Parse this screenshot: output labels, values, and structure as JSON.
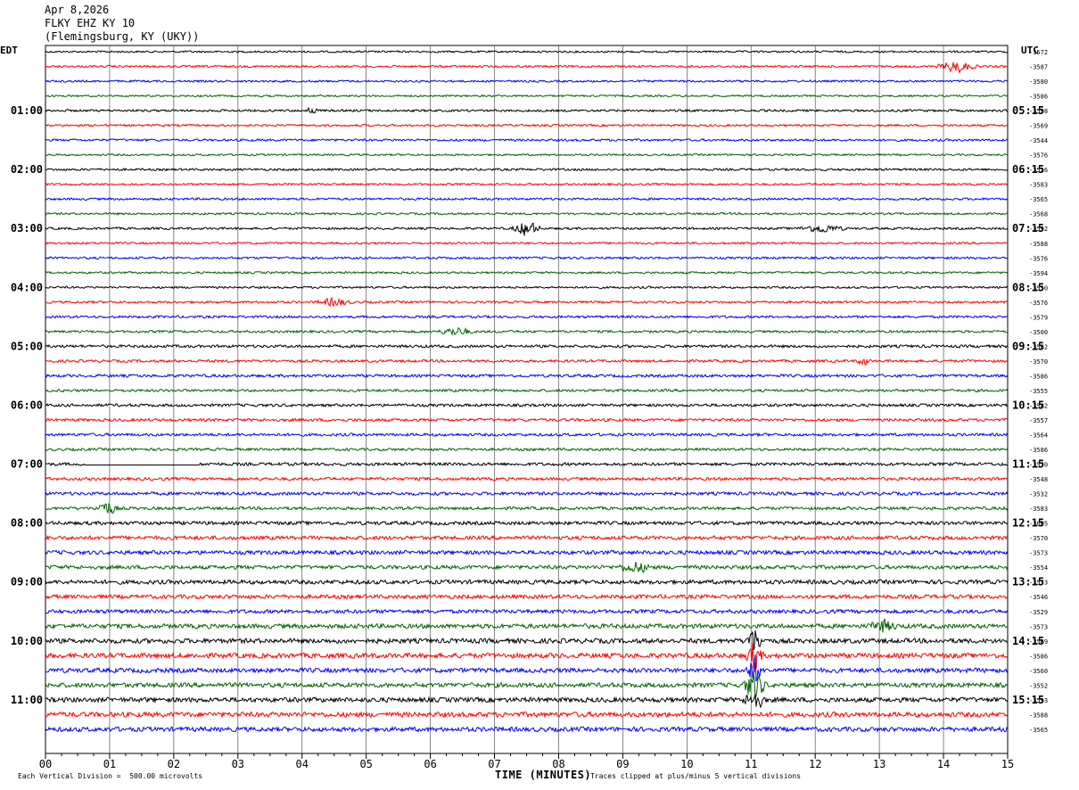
{
  "header": {
    "date": "Apr 8,2026",
    "station": "FLKY EHZ KY 10",
    "location": "(Flemingsburg, KY (UKY))"
  },
  "timezones": {
    "left": "EDT",
    "right": "UTC"
  },
  "footer": {
    "division_note": "Each Vertical Division =  500.00 microvolts",
    "clip_note": "Traces clipped at plus/minus 5 vertical divisions"
  },
  "chart_data": {
    "type": "line",
    "title": "",
    "xlabel": "TIME (MINUTES)",
    "ylabel": "",
    "xlim": [
      0,
      15
    ],
    "x_ticks": [
      "00",
      "01",
      "02",
      "03",
      "04",
      "05",
      "06",
      "07",
      "08",
      "09",
      "10",
      "11",
      "12",
      "13",
      "14",
      "15"
    ],
    "grid": true,
    "trace_minutes": 15,
    "trace_colors": [
      "#000000",
      "#ff0000",
      "#0000ff",
      "#006400"
    ],
    "left_hour_labels": [
      "01:00",
      "02:00",
      "03:00",
      "04:00",
      "05:00",
      "06:00",
      "07:00",
      "08:00",
      "09:00",
      "10:00",
      "11:00"
    ],
    "right_hour_labels": [
      "05:15",
      "06:15",
      "07:15",
      "08:15",
      "09:15",
      "10:15",
      "11:15",
      "12:15",
      "13:15",
      "14:15",
      "15:15"
    ],
    "trace_offsets": [
      "-3572",
      "-3587",
      "-3580",
      "-3586",
      "-3598",
      "-3569",
      "-3544",
      "-3576",
      "-3526",
      "-3583",
      "-3565",
      "-3568",
      "-3592",
      "-3588",
      "-3576",
      "-3594",
      "-3550",
      "-3576",
      "-3579",
      "-3500",
      "-3562",
      "-3570",
      "-3586",
      "-3555",
      "-3582",
      "-3557",
      "-3564",
      "-3586",
      "-3570",
      "-3548",
      "-3532",
      "-3583",
      "-3605",
      "-3570",
      "-3573",
      "-3554",
      "-3573",
      "-3546",
      "-3529",
      "-3573",
      "-3569",
      "-3586",
      "-3560",
      "-3552",
      "-3593",
      "-3588",
      "-3565"
    ],
    "noise_rows": [
      {
        "row": 0,
        "level": 1.0
      },
      {
        "row": 1,
        "level": 1.1
      },
      {
        "row": 2,
        "level": 1.1
      },
      {
        "row": 3,
        "level": 1.0
      },
      {
        "row": 4,
        "level": 1.2
      },
      {
        "row": 5,
        "level": 1.1
      },
      {
        "row": 6,
        "level": 1.2
      },
      {
        "row": 7,
        "level": 1.0
      },
      {
        "row": 8,
        "level": 1.2
      },
      {
        "row": 9,
        "level": 1.1
      },
      {
        "row": 10,
        "level": 1.2
      },
      {
        "row": 11,
        "level": 1.1
      },
      {
        "row": 12,
        "level": 1.2
      },
      {
        "row": 13,
        "level": 1.1
      },
      {
        "row": 14,
        "level": 1.2
      },
      {
        "row": 15,
        "level": 1.1
      },
      {
        "row": 16,
        "level": 1.1
      },
      {
        "row": 17,
        "level": 1.2
      },
      {
        "row": 18,
        "level": 1.3
      },
      {
        "row": 19,
        "level": 1.3
      },
      {
        "row": 20,
        "level": 1.5
      },
      {
        "row": 21,
        "level": 1.4
      },
      {
        "row": 22,
        "level": 1.5
      },
      {
        "row": 23,
        "level": 1.4
      },
      {
        "row": 24,
        "level": 1.5
      },
      {
        "row": 25,
        "level": 1.5
      },
      {
        "row": 26,
        "level": 1.5
      },
      {
        "row": 27,
        "level": 1.4
      },
      {
        "row": 28,
        "level": 1.6
      },
      {
        "row": 29,
        "level": 1.6
      },
      {
        "row": 30,
        "level": 1.7
      },
      {
        "row": 31,
        "level": 1.6
      },
      {
        "row": 32,
        "level": 1.9
      },
      {
        "row": 33,
        "level": 2.0
      },
      {
        "row": 34,
        "level": 2.1
      },
      {
        "row": 35,
        "level": 2.0
      },
      {
        "row": 36,
        "level": 2.2
      },
      {
        "row": 37,
        "level": 2.1
      },
      {
        "row": 38,
        "level": 2.0
      },
      {
        "row": 39,
        "level": 2.4
      },
      {
        "row": 40,
        "level": 2.5
      },
      {
        "row": 41,
        "level": 2.6
      },
      {
        "row": 42,
        "level": 2.4
      },
      {
        "row": 43,
        "level": 2.4
      },
      {
        "row": 44,
        "level": 2.5
      },
      {
        "row": 45,
        "level": 2.6
      },
      {
        "row": 46,
        "level": 2.4
      }
    ],
    "events": [
      {
        "row": 1,
        "minute": 14.2,
        "amp": 6,
        "width_min": 0.35
      },
      {
        "row": 4,
        "minute": 4.15,
        "amp": 4,
        "width_min": 0.1
      },
      {
        "row": 12,
        "minute": 7.5,
        "amp": 8,
        "width_min": 0.25
      },
      {
        "row": 12,
        "minute": 12.1,
        "amp": 4,
        "width_min": 0.4
      },
      {
        "row": 17,
        "minute": 4.5,
        "amp": 4,
        "width_min": 0.3
      },
      {
        "row": 19,
        "minute": 6.4,
        "amp": 4,
        "width_min": 0.3
      },
      {
        "row": 21,
        "minute": 12.75,
        "amp": 5,
        "width_min": 0.1
      },
      {
        "row": 31,
        "minute": 0.95,
        "amp": 7,
        "width_min": 0.2
      },
      {
        "row": 35,
        "minute": 9.2,
        "amp": 5,
        "width_min": 0.3
      },
      {
        "row": 39,
        "minute": 13.05,
        "amp": 6,
        "width_min": 0.25
      },
      {
        "row": 40,
        "minute": 11.05,
        "amp": 14,
        "width_min": 0.15
      },
      {
        "row": 41,
        "minute": 11.05,
        "amp": 16,
        "width_min": 0.15
      },
      {
        "row": 42,
        "minute": 11.05,
        "amp": 16,
        "width_min": 0.15
      },
      {
        "row": 43,
        "minute": 11.05,
        "amp": 16,
        "width_min": 0.2
      },
      {
        "row": 44,
        "minute": 11.05,
        "amp": 10,
        "width_min": 0.2
      }
    ],
    "gap": {
      "row": 28,
      "start_min": 0.6,
      "end_min": 2.4
    }
  }
}
